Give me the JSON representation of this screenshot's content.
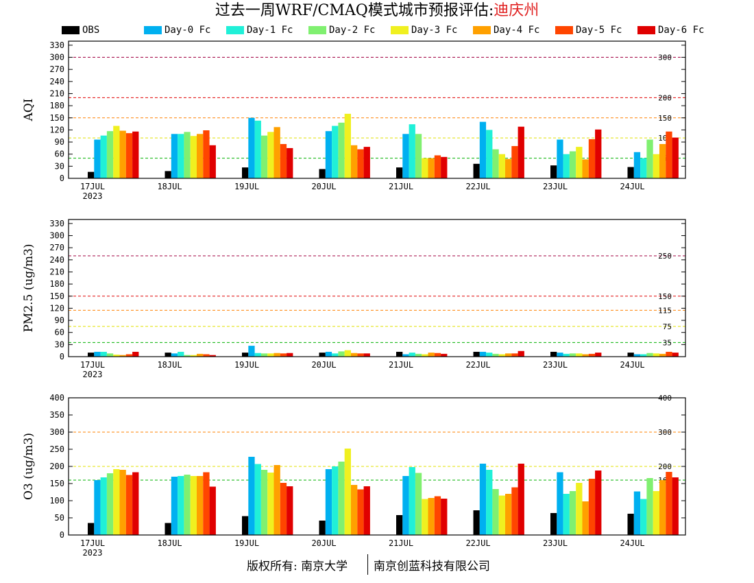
{
  "title": {
    "main": "过去一周WRF/CMAQ模式城市预报评估:",
    "city": "迪庆州",
    "city_color": "#e02020"
  },
  "legend": [
    {
      "name": "OBS",
      "color": "#000000"
    },
    {
      "name": "Day-0 Fc",
      "color": "#00b0f0"
    },
    {
      "name": "Day-1 Fc",
      "color": "#20f0d8"
    },
    {
      "name": "Day-2 Fc",
      "color": "#80f070"
    },
    {
      "name": "Day-3 Fc",
      "color": "#f0f020"
    },
    {
      "name": "Day-4 Fc",
      "color": "#ffa000"
    },
    {
      "name": "Day-5 Fc",
      "color": "#ff4500"
    },
    {
      "name": "Day-6 Fc",
      "color": "#e00000"
    }
  ],
  "footer": {
    "left": "版权所有: 南京大学",
    "right": "南京创蓝科技有限公司"
  },
  "chart_data": [
    {
      "type": "bar",
      "ylabel": "AQI",
      "categories": [
        "17JUL",
        "18JUL",
        "19JUL",
        "20JUL",
        "21JUL",
        "22JUL",
        "23JUL",
        "24JUL"
      ],
      "year_label": "2023",
      "ylim": [
        0,
        340
      ],
      "yticks": [
        0,
        30,
        60,
        90,
        120,
        150,
        180,
        210,
        240,
        270,
        300,
        330
      ],
      "ref_lines": [
        {
          "value": 50,
          "label": "50",
          "color": "#00b000"
        },
        {
          "value": 100,
          "label": "100",
          "color": "#e0e000"
        },
        {
          "value": 150,
          "label": "150",
          "color": "#ff8000"
        },
        {
          "value": 200,
          "label": "200",
          "color": "#e00000"
        },
        {
          "value": 300,
          "label": "300",
          "color": "#a00040"
        }
      ],
      "series": [
        {
          "name": "OBS",
          "values": [
            16,
            18,
            27,
            23,
            27,
            36,
            32,
            28
          ]
        },
        {
          "name": "Day-0 Fc",
          "values": [
            96,
            110,
            150,
            117,
            110,
            140,
            96,
            65
          ]
        },
        {
          "name": "Day-1 Fc",
          "values": [
            106,
            110,
            143,
            130,
            134,
            120,
            60,
            50
          ]
        },
        {
          "name": "Day-2 Fc",
          "values": [
            117,
            115,
            106,
            138,
            110,
            72,
            67,
            96
          ]
        },
        {
          "name": "Day-3 Fc",
          "values": [
            130,
            105,
            115,
            160,
            50,
            60,
            78,
            60
          ]
        },
        {
          "name": "Day-4 Fc",
          "values": [
            118,
            110,
            127,
            82,
            50,
            48,
            47,
            85
          ]
        },
        {
          "name": "Day-5 Fc",
          "values": [
            112,
            119,
            85,
            72,
            57,
            80,
            97,
            116
          ]
        },
        {
          "name": "Day-6 Fc",
          "values": [
            116,
            82,
            75,
            78,
            53,
            128,
            121,
            101
          ]
        }
      ]
    },
    {
      "type": "bar",
      "ylabel": "PM2.5 (ug/m3)",
      "categories": [
        "17JUL",
        "18JUL",
        "19JUL",
        "20JUL",
        "21JUL",
        "22JUL",
        "23JUL",
        "24JUL"
      ],
      "year_label": "2023",
      "ylim": [
        0,
        340
      ],
      "yticks": [
        0,
        30,
        60,
        90,
        120,
        150,
        180,
        210,
        240,
        270,
        300,
        330
      ],
      "ref_lines": [
        {
          "value": 35,
          "label": "35",
          "color": "#00b000"
        },
        {
          "value": 75,
          "label": "75",
          "color": "#e0e000"
        },
        {
          "value": 115,
          "label": "115",
          "color": "#ff8000"
        },
        {
          "value": 150,
          "label": "150",
          "color": "#e00000"
        },
        {
          "value": 250,
          "label": "250",
          "color": "#a00040"
        }
      ],
      "series": [
        {
          "name": "OBS",
          "values": [
            10,
            10,
            10,
            10,
            12,
            12,
            12,
            10
          ]
        },
        {
          "name": "Day-0 Fc",
          "values": [
            12,
            8,
            27,
            12,
            6,
            12,
            10,
            6
          ]
        },
        {
          "name": "Day-1 Fc",
          "values": [
            12,
            12,
            9,
            8,
            10,
            10,
            7,
            6
          ]
        },
        {
          "name": "Day-2 Fc",
          "values": [
            8,
            4,
            8,
            13,
            7,
            7,
            8,
            9
          ]
        },
        {
          "name": "Day-3 Fc",
          "values": [
            5,
            4,
            8,
            16,
            6,
            6,
            8,
            8
          ]
        },
        {
          "name": "Day-4 Fc",
          "values": [
            4,
            7,
            9,
            9,
            10,
            8,
            6,
            7
          ]
        },
        {
          "name": "Day-5 Fc",
          "values": [
            6,
            6,
            8,
            8,
            9,
            8,
            7,
            12
          ]
        },
        {
          "name": "Day-6 Fc",
          "values": [
            12,
            4,
            9,
            8,
            7,
            14,
            10,
            10
          ]
        }
      ]
    },
    {
      "type": "bar",
      "ylabel": "O3 (ug/m3)",
      "categories": [
        "17JUL",
        "18JUL",
        "19JUL",
        "20JUL",
        "21JUL",
        "22JUL",
        "23JUL",
        "24JUL"
      ],
      "year_label": "2023",
      "ylim": [
        0,
        400
      ],
      "yticks": [
        0,
        50,
        100,
        150,
        200,
        250,
        300,
        350,
        400
      ],
      "ref_lines": [
        {
          "value": 160,
          "label": "160",
          "color": "#00b000"
        },
        {
          "value": 200,
          "label": "200",
          "color": "#e0e000"
        },
        {
          "value": 300,
          "label": "300",
          "color": "#ff8000"
        },
        {
          "value": 400,
          "label": "400",
          "color": "#e00000"
        }
      ],
      "series": [
        {
          "name": "OBS",
          "values": [
            35,
            35,
            55,
            42,
            58,
            72,
            64,
            62
          ]
        },
        {
          "name": "Day-0 Fc",
          "values": [
            160,
            170,
            228,
            192,
            172,
            208,
            183,
            127
          ]
        },
        {
          "name": "Day-1 Fc",
          "values": [
            168,
            172,
            207,
            200,
            198,
            190,
            120,
            105
          ]
        },
        {
          "name": "Day-2 Fc",
          "values": [
            180,
            176,
            190,
            214,
            181,
            134,
            128,
            166
          ]
        },
        {
          "name": "Day-3 Fc",
          "values": [
            192,
            172,
            182,
            252,
            105,
            115,
            152,
            128
          ]
        },
        {
          "name": "Day-4 Fc",
          "values": [
            190,
            172,
            204,
            146,
            108,
            120,
            98,
            160
          ]
        },
        {
          "name": "Day-5 Fc",
          "values": [
            175,
            183,
            152,
            133,
            113,
            139,
            164,
            184
          ]
        },
        {
          "name": "Day-6 Fc",
          "values": [
            183,
            141,
            142,
            142,
            106,
            208,
            188,
            168
          ]
        }
      ]
    }
  ]
}
